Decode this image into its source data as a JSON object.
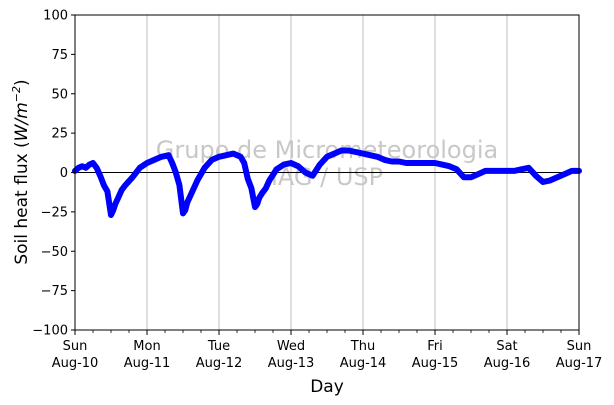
{
  "chart_data": {
    "type": "line",
    "xlabel": "Day",
    "ylabel_main": "Soil heat flux (",
    "ylabel_unit": "W/m",
    "ylabel_exp": "−2",
    "ylabel_close": ")",
    "ylim": [
      -100,
      100
    ],
    "yticks": [
      -100,
      -75,
      -50,
      -25,
      0,
      25,
      50,
      75,
      100
    ],
    "xlim": [
      0,
      7
    ],
    "xticks": [
      {
        "x": 0,
        "day": "Sun",
        "date": "Aug-10"
      },
      {
        "x": 1,
        "day": "Mon",
        "date": "Aug-11"
      },
      {
        "x": 2,
        "day": "Tue",
        "date": "Aug-12"
      },
      {
        "x": 3,
        "day": "Wed",
        "date": "Aug-13"
      },
      {
        "x": 4,
        "day": "Thu",
        "date": "Aug-14"
      },
      {
        "x": 5,
        "day": "Fri",
        "date": "Aug-15"
      },
      {
        "x": 6,
        "day": "Sat",
        "date": "Aug-16"
      },
      {
        "x": 7,
        "day": "Sun",
        "date": "Aug-17"
      }
    ],
    "minor_ticks_per_day": 4,
    "grid": "vertical-major",
    "zero_line": true,
    "watermark": [
      "Grupo de Micrometeorologia",
      "IAG / USP"
    ],
    "series": [
      {
        "color": "#0000ff",
        "x": [
          0.0,
          0.05,
          0.1,
          0.15,
          0.2,
          0.25,
          0.3,
          0.35,
          0.4,
          0.45,
          0.5,
          0.53,
          0.56,
          0.6,
          0.65,
          0.7,
          0.8,
          0.9,
          1.0,
          1.1,
          1.2,
          1.3,
          1.35,
          1.4,
          1.45,
          1.5,
          1.53,
          1.56,
          1.6,
          1.65,
          1.7,
          1.8,
          1.9,
          2.0,
          2.1,
          2.2,
          2.3,
          2.35,
          2.4,
          2.45,
          2.5,
          2.53,
          2.56,
          2.6,
          2.65,
          2.7,
          2.8,
          2.9,
          3.0,
          3.1,
          3.2,
          3.3,
          3.4,
          3.5,
          3.6,
          3.7,
          3.8,
          3.9,
          4.0,
          4.1,
          4.2,
          4.3,
          4.4,
          4.5,
          4.6,
          4.7,
          4.8,
          4.9,
          5.0,
          5.1,
          5.2,
          5.3,
          5.4,
          5.5,
          5.6,
          5.7,
          5.8,
          5.9,
          6.0,
          6.1,
          6.2,
          6.3,
          6.4,
          6.5,
          6.6,
          6.7,
          6.8,
          6.9,
          7.0
        ],
        "y": [
          1,
          3,
          4,
          3,
          5,
          6,
          3,
          -2,
          -8,
          -12,
          -27,
          -24,
          -20,
          -16,
          -11,
          -8,
          -3,
          3,
          6,
          8,
          10,
          11,
          6,
          0,
          -8,
          -26,
          -24,
          -19,
          -15,
          -10,
          -5,
          3,
          8,
          10,
          11,
          12,
          10,
          6,
          -4,
          -10,
          -22,
          -20,
          -16,
          -13,
          -10,
          -5,
          2,
          5,
          6,
          4,
          0,
          -2,
          5,
          10,
          12,
          14,
          14,
          13,
          12,
          11,
          10,
          8,
          7,
          7,
          6,
          6,
          6,
          6,
          6,
          5,
          4,
          2,
          -3,
          -3,
          -1,
          1,
          1,
          1,
          1,
          1,
          2,
          3,
          -2,
          -6,
          -5,
          -3,
          -1,
          1,
          1
        ]
      }
    ]
  }
}
